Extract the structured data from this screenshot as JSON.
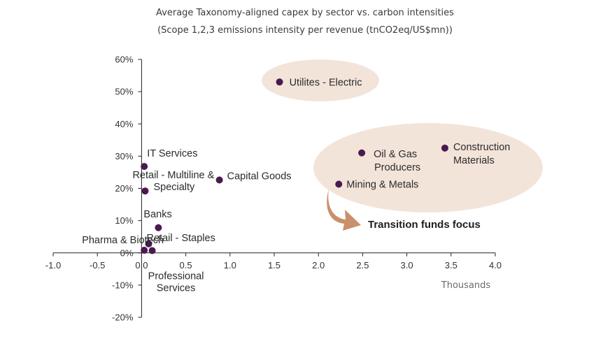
{
  "chart_data": {
    "type": "scatter",
    "title": "Average Taxonomy-aligned capex by sector vs. carbon intensities",
    "subtitle": "(Scope 1,2,3 emissions intensity per revenue (tnCO2eq/US$mn))",
    "xunit": "Thousands",
    "xlim": [
      -1.0,
      4.0
    ],
    "ylim": [
      -20,
      60
    ],
    "xticks": [
      -1.0,
      -0.5,
      0,
      0.5,
      1.0,
      1.5,
      2.0,
      2.5,
      3.0,
      3.5,
      4.0
    ],
    "xtick_labels": [
      "-1.0",
      "-0.5",
      "0.0",
      "0.5",
      "1.0",
      "1.5",
      "2.0",
      "2.5",
      "3.0",
      "3.5",
      "4.0"
    ],
    "yticks": [
      -20,
      -10,
      0,
      10,
      20,
      30,
      40,
      50,
      60
    ],
    "ytick_labels": [
      "-20%",
      "-10%",
      "0%",
      "10%",
      "20%",
      "30%",
      "40%",
      "50%",
      "60%"
    ],
    "marker_color": "#4a1a4f",
    "highlight_color": "#f3e4da",
    "arrow_color": "#c9906b",
    "points": [
      {
        "label": "Utilites - Electric",
        "x": 1.56,
        "y": 53.0
      },
      {
        "label": "IT Services",
        "x": 0.03,
        "y": 26.8
      },
      {
        "label": "Retail - Multiline & Specialty",
        "x": 0.04,
        "y": 19.2
      },
      {
        "label": "Capital Goods",
        "x": 0.88,
        "y": 22.6
      },
      {
        "label": "Banks",
        "x": 0.19,
        "y": 7.8
      },
      {
        "label": "Pharma & Biotech",
        "x": 0.03,
        "y": 0.8
      },
      {
        "label": "Retail - Staples",
        "x": 0.08,
        "y": 2.8
      },
      {
        "label": "Professional Services",
        "x": 0.12,
        "y": 0.7
      },
      {
        "label": "Oil & Gas Producers",
        "x": 2.49,
        "y": 31.0
      },
      {
        "label": "Construction Materials",
        "x": 3.43,
        "y": 32.5
      },
      {
        "label": "Mining & Metals",
        "x": 2.23,
        "y": 21.3
      }
    ],
    "annotations": [
      {
        "text": "Transition funds focus"
      }
    ]
  }
}
